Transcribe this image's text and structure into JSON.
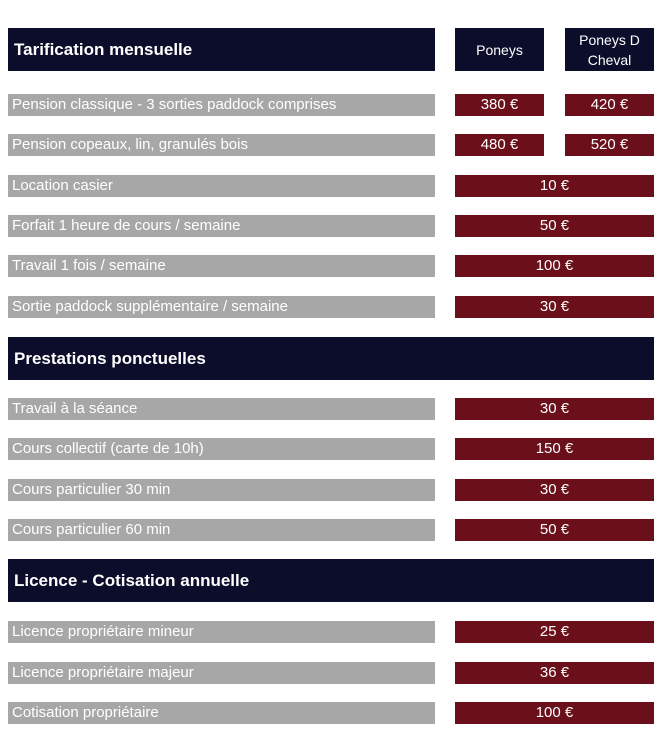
{
  "sections": [
    {
      "title": "Tarification mensuelle",
      "columns": [
        "Poneys",
        "Poneys D Cheval"
      ]
    },
    {
      "title": "Prestations ponctuelles"
    },
    {
      "title": "Licence - Cotisation annuelle"
    }
  ],
  "rows": [
    {
      "label": "Pension classique - 3 sorties paddock comprises",
      "prices": [
        "380 €",
        "420 €"
      ]
    },
    {
      "label": "Pension copeaux, lin, granulés bois",
      "prices": [
        "480 €",
        "520 €"
      ]
    },
    {
      "label": "Location casier",
      "price": "10 €"
    },
    {
      "label": "Forfait 1 heure de cours / semaine",
      "price": "50 €"
    },
    {
      "label": "Travail 1 fois / semaine",
      "price": "100 €"
    },
    {
      "label": "Sortie paddock supplémentaire / semaine",
      "price": "30 €"
    },
    {
      "label": "Travail à la séance",
      "price": "30 €"
    },
    {
      "label": "Cours collectif (carte de 10h)",
      "price": "150 €"
    },
    {
      "label": "Cours particulier 30 min",
      "price": "30 €"
    },
    {
      "label": "Cours particulier 60 min",
      "price": "50 €"
    },
    {
      "label": "Licence propriétaire mineur",
      "price": "25 €"
    },
    {
      "label": "Licence propriétaire majeur",
      "price": "36 €"
    },
    {
      "label": "Cotisation propriétaire",
      "price": "100 €"
    }
  ]
}
